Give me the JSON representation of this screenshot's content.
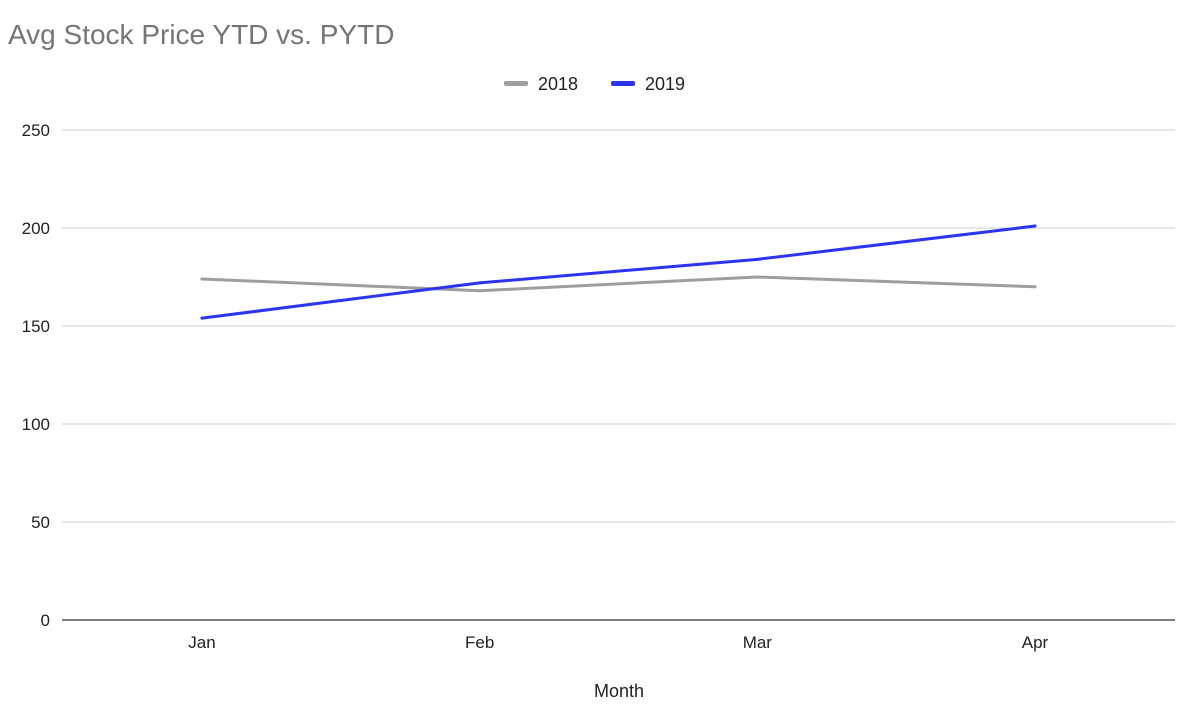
{
  "chart_data": {
    "type": "line",
    "title": "Avg Stock Price YTD vs. PYTD",
    "xlabel": "Month",
    "ylabel": "",
    "categories": [
      "Jan",
      "Feb",
      "Mar",
      "Apr"
    ],
    "ylim": [
      0,
      250
    ],
    "yticks": [
      0,
      50,
      100,
      150,
      200,
      250
    ],
    "grid": true,
    "legend_position": "top",
    "series": [
      {
        "name": "2018",
        "color": "#9e9e9e",
        "values": [
          174,
          168,
          175,
          170
        ]
      },
      {
        "name": "2019",
        "color": "#2b35f0",
        "values": [
          154,
          172,
          184,
          201
        ]
      }
    ]
  }
}
